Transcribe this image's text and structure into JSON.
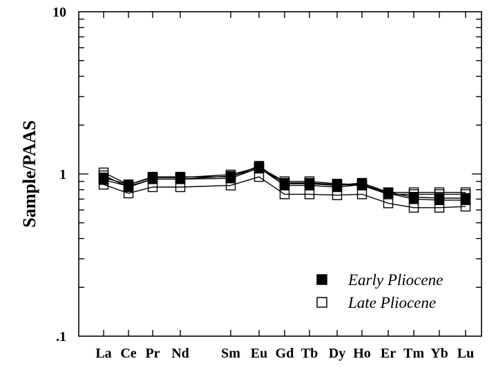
{
  "chart_data": {
    "type": "line",
    "title": "",
    "xlabel": "",
    "ylabel": "Sample/PAAS",
    "y_scale": "log",
    "ylim": [
      0.1,
      10
    ],
    "y_tick_labels": [
      "10",
      "1",
      ".1"
    ],
    "categories": [
      "La",
      "Ce",
      "Pr",
      "Nd",
      "Sm",
      "Eu",
      "Gd",
      "Tb",
      "Dy",
      "Ho",
      "Er",
      "Tm",
      "Yb",
      "Lu"
    ],
    "legend_position": "bottom-right",
    "grid": false,
    "series": [
      {
        "name": "Early Pliocene",
        "marker": "filled-square",
        "color": "#000000",
        "samples": [
          [
            0.95,
            0.86,
            0.96,
            0.96,
            0.96,
            1.12,
            0.87,
            0.87,
            0.85,
            0.88,
            0.77,
            0.72,
            0.71,
            0.71
          ],
          [
            0.92,
            0.84,
            0.93,
            0.93,
            0.94,
            1.09,
            0.85,
            0.85,
            0.83,
            0.86,
            0.76,
            0.7,
            0.69,
            0.69
          ]
        ]
      },
      {
        "name": "Late Pliocene",
        "marker": "open-square",
        "color": "#000000",
        "samples": [
          [
            1.02,
            0.86,
            0.95,
            0.95,
            0.99,
            1.1,
            0.9,
            0.9,
            0.87,
            0.86,
            0.77,
            0.77,
            0.77,
            0.77
          ],
          [
            0.98,
            0.83,
            0.93,
            0.93,
            0.97,
            1.08,
            0.88,
            0.88,
            0.86,
            0.85,
            0.75,
            0.75,
            0.75,
            0.75
          ],
          [
            0.86,
            0.76,
            0.83,
            0.83,
            0.85,
            0.96,
            0.75,
            0.75,
            0.74,
            0.75,
            0.66,
            0.62,
            0.62,
            0.63
          ]
        ]
      }
    ]
  }
}
